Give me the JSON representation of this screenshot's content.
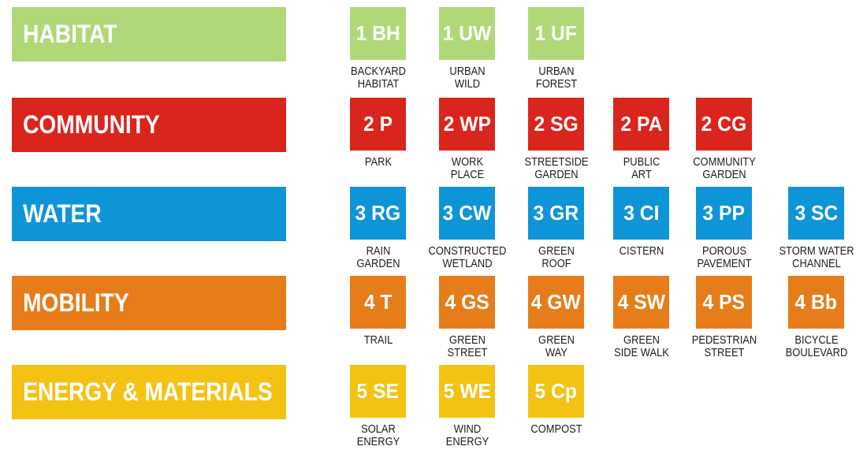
{
  "palette": {
    "background": "#ffffff",
    "bar_text": "#ffffff",
    "tile_code_text": "#ffffff",
    "tile_label_text": "#1d1d1d"
  },
  "rows": [
    {
      "label": "HABITAT",
      "color": "#b1d878",
      "tiles": [
        {
          "code": "1 BH",
          "name": "BACKYARD\nHABITAT"
        },
        {
          "code": "1 UW",
          "name": "URBAN\nWILD"
        },
        {
          "code": "1 UF",
          "name": "URBAN\nFOREST"
        }
      ]
    },
    {
      "label": "COMMUNITY",
      "color": "#da251d",
      "tiles": [
        {
          "code": "2 P",
          "name": "PARK"
        },
        {
          "code": "2 WP",
          "name": "WORK\nPLACE"
        },
        {
          "code": "2 SG",
          "name": "STREETSIDE\nGARDEN"
        },
        {
          "code": "2 PA",
          "name": "PUBLIC\nART"
        },
        {
          "code": "2 CG",
          "name": "COMMUNITY\nGARDEN"
        }
      ]
    },
    {
      "label": "WATER",
      "color": "#0e95d8",
      "tiles": [
        {
          "code": "3 RG",
          "name": "RAIN\nGARDEN"
        },
        {
          "code": "3 CW",
          "name": "CONSTRUCTED\nWETLAND"
        },
        {
          "code": "3 GR",
          "name": "GREEN\nROOF"
        },
        {
          "code": "3 CI",
          "name": "CISTERN"
        },
        {
          "code": "3 PP",
          "name": "POROUS\nPAVEMENT"
        },
        {
          "code": "3 SC",
          "name": "STORM WATER\nCHANNEL"
        }
      ]
    },
    {
      "label": "MOBILITY",
      "color": "#e67d1a",
      "tiles": [
        {
          "code": "4 T",
          "name": "TRAIL"
        },
        {
          "code": "4 GS",
          "name": "GREEN\nSTREET"
        },
        {
          "code": "4 GW",
          "name": "GREEN\nWAY"
        },
        {
          "code": "4 SW",
          "name": "GREEN\nSIDE WALK"
        },
        {
          "code": "4 PS",
          "name": "PEDESTRIAN\nSTREET"
        },
        {
          "code": "4 Bb",
          "name": "BICYCLE\nBOULEVARD"
        }
      ]
    },
    {
      "label": "ENERGY & MATERIALS",
      "color": "#f3c213",
      "tiles": [
        {
          "code": "5 SE",
          "name": "SOLAR\nENERGY"
        },
        {
          "code": "5 WE",
          "name": "WIND\nENERGY"
        },
        {
          "code": "5 Cp",
          "name": "COMPOST"
        }
      ]
    }
  ]
}
